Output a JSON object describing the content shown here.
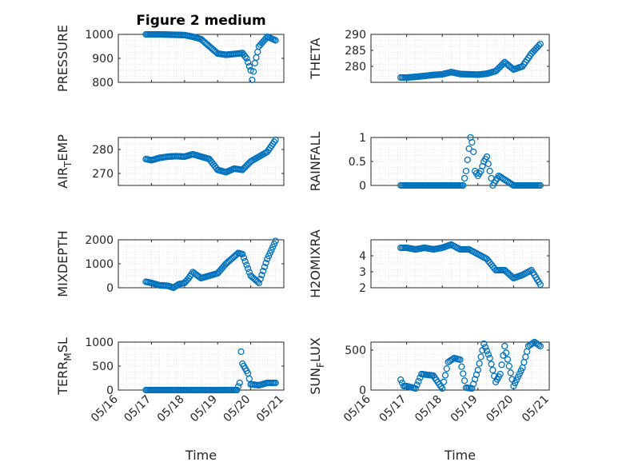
{
  "chart_data": [
    {
      "type": "scatter",
      "title": "Figure 2 medium",
      "ylabel": "PRESSURE",
      "ylim": [
        800,
        1000
      ],
      "yticks": [
        800,
        900,
        1000
      ],
      "xlim": [
        "05/16",
        "05/21"
      ],
      "series": [
        {
          "name": "",
          "x": [
            "05/16 20:00",
            "05/17 00:00",
            "05/17 06:00",
            "05/17 12:00",
            "05/17 18:00",
            "05/18 00:00",
            "05/18 06:00",
            "05/18 12:00",
            "05/18 18:00",
            "05/19 00:00",
            "05/19 06:00",
            "05/19 12:00",
            "05/19 18:00",
            "05/19 21:00",
            "05/20 00:00",
            "05/20 01:00",
            "05/20 03:00",
            "05/20 06:00",
            "05/20 12:00",
            "05/20 18:00"
          ],
          "y": [
            1000,
            1000,
            1000,
            999,
            998,
            997,
            990,
            980,
            950,
            920,
            915,
            918,
            922,
            900,
            850,
            810,
            880,
            950,
            990,
            975
          ]
        }
      ],
      "grid": true,
      "marker": "open-circle",
      "color": "#0072BD"
    },
    {
      "type": "scatter",
      "title": "",
      "ylabel": "THETA",
      "ylim": [
        275,
        290
      ],
      "yticks": [
        280,
        285,
        290
      ],
      "xlim": [
        "05/16",
        "05/21"
      ],
      "series": [
        {
          "name": "",
          "x": [
            "05/16 20:00",
            "05/17 00:00",
            "05/17 06:00",
            "05/17 12:00",
            "05/17 18:00",
            "05/18 00:00",
            "05/18 06:00",
            "05/18 12:00",
            "05/18 18:00",
            "05/19 00:00",
            "05/19 06:00",
            "05/19 12:00",
            "05/19 18:00",
            "05/20 00:00",
            "05/20 06:00",
            "05/20 12:00",
            "05/20 18:00"
          ],
          "y": [
            276.5,
            276.5,
            276.7,
            277,
            277.3,
            277.5,
            278.2,
            277.6,
            277.5,
            277.4,
            277.7,
            278.5,
            281.3,
            279,
            280,
            284,
            287
          ]
        }
      ],
      "grid": true,
      "marker": "open-circle",
      "color": "#0072BD"
    },
    {
      "type": "scatter",
      "title": "",
      "ylabel": "AIR_TEMP",
      "ylabel_display": [
        "AIR",
        "T",
        "EMP"
      ],
      "ylim": [
        265,
        285
      ],
      "yticks": [
        270,
        280
      ],
      "xlim": [
        "05/16",
        "05/21"
      ],
      "series": [
        {
          "name": "",
          "x": [
            "05/16 20:00",
            "05/17 00:00",
            "05/17 06:00",
            "05/17 12:00",
            "05/17 18:00",
            "05/18 00:00",
            "05/18 06:00",
            "05/18 12:00",
            "05/18 18:00",
            "05/19 00:00",
            "05/19 06:00",
            "05/19 12:00",
            "05/19 18:00",
            "05/20 00:00",
            "05/20 06:00",
            "05/20 12:00",
            "05/20 18:00"
          ],
          "y": [
            276,
            275.5,
            276.5,
            277,
            277.2,
            277,
            278,
            277,
            276,
            271.5,
            270.5,
            272,
            271.5,
            275,
            277,
            279,
            284
          ]
        }
      ],
      "grid": true,
      "marker": "open-circle",
      "color": "#0072BD"
    },
    {
      "type": "scatter",
      "title": "",
      "ylabel": "RAINFALL",
      "ylim": [
        0,
        1
      ],
      "yticks": [
        0,
        0.5,
        1
      ],
      "xlim": [
        "05/16",
        "05/21"
      ],
      "series": [
        {
          "name": "",
          "x": [
            "05/16 20:00",
            "05/17 06:00",
            "05/17 18:00",
            "05/18 06:00",
            "05/18 14:00",
            "05/18 16:00",
            "05/18 19:00",
            "05/18 20:00",
            "05/18 21:00",
            "05/18 22:00",
            "05/19 00:00",
            "05/19 02:00",
            "05/19 04:00",
            "05/19 06:00",
            "05/19 10:00",
            "05/19 14:00",
            "05/20 00:00",
            "05/20 12:00",
            "05/20 18:00"
          ],
          "y": [
            0,
            0,
            0,
            0,
            0,
            0.3,
            1,
            0.9,
            0.7,
            0.3,
            0.2,
            0.3,
            0.5,
            0.6,
            0,
            0.2,
            0,
            0,
            0
          ]
        }
      ],
      "grid": true,
      "marker": "open-circle",
      "color": "#0072BD"
    },
    {
      "type": "scatter",
      "title": "",
      "ylabel": "MIXDEPTH",
      "ylim": [
        0,
        2000
      ],
      "yticks": [
        0,
        1000,
        2000
      ],
      "xlim": [
        "05/16",
        "05/21"
      ],
      "series": [
        {
          "name": "",
          "x": [
            "05/16 20:00",
            "05/17 00:00",
            "05/17 06:00",
            "05/17 12:00",
            "05/17 16:00",
            "05/17 20:00",
            "05/18 00:00",
            "05/18 03:00",
            "05/18 06:00",
            "05/18 12:00",
            "05/18 18:00",
            "05/19 00:00",
            "05/19 06:00",
            "05/19 12:00",
            "05/19 15:00",
            "05/19 18:00",
            "05/20 00:00",
            "05/20 06:00",
            "05/20 12:00",
            "05/20 18:00"
          ],
          "y": [
            250,
            200,
            100,
            80,
            0,
            150,
            200,
            400,
            650,
            400,
            500,
            600,
            1000,
            1300,
            1450,
            1400,
            500,
            200,
            1200,
            1950
          ]
        }
      ],
      "grid": true,
      "marker": "open-circle",
      "color": "#0072BD"
    },
    {
      "type": "scatter",
      "title": "",
      "ylabel": "H2OMIXRA",
      "ylim": [
        2,
        5
      ],
      "yticks": [
        2,
        3,
        4
      ],
      "xlim": [
        "05/16",
        "05/21"
      ],
      "series": [
        {
          "name": "",
          "x": [
            "05/16 20:00",
            "05/17 00:00",
            "05/17 06:00",
            "05/17 12:00",
            "05/17 18:00",
            "05/18 00:00",
            "05/18 06:00",
            "05/18 12:00",
            "05/18 18:00",
            "05/19 00:00",
            "05/19 06:00",
            "05/19 12:00",
            "05/19 18:00",
            "05/20 00:00",
            "05/20 06:00",
            "05/20 12:00",
            "05/20 18:00"
          ],
          "y": [
            4.5,
            4.5,
            4.4,
            4.5,
            4.4,
            4.5,
            4.7,
            4.4,
            4.4,
            4.1,
            3.8,
            3.1,
            3.1,
            2.6,
            2.8,
            3.1,
            2.2
          ]
        }
      ],
      "grid": true,
      "marker": "open-circle",
      "color": "#0072BD"
    },
    {
      "type": "scatter",
      "title": "",
      "ylabel": "TERR_MSL",
      "ylabel_display": [
        "TERR",
        "M",
        "SL"
      ],
      "ylim": [
        0,
        1000
      ],
      "yticks": [
        0,
        500,
        1000
      ],
      "xlim": [
        "05/16",
        "05/21"
      ],
      "xticks": [
        "05/16",
        "05/17",
        "05/18",
        "05/19",
        "05/20",
        "05/21"
      ],
      "xlabel": "Time",
      "series": [
        {
          "name": "",
          "x": [
            "05/16 20:00",
            "05/17 06:00",
            "05/17 18:00",
            "05/18 06:00",
            "05/18 18:00",
            "05/19 06:00",
            "05/19 14:00",
            "05/19 16:00",
            "05/19 17:00",
            "05/19 18:00",
            "05/19 20:00",
            "05/19 22:00",
            "05/20 00:00",
            "05/20 06:00",
            "05/20 12:00",
            "05/20 18:00"
          ],
          "y": [
            0,
            0,
            0,
            0,
            0,
            0,
            0,
            150,
            800,
            550,
            450,
            350,
            120,
            100,
            150,
            150
          ]
        }
      ],
      "grid": true,
      "marker": "open-circle",
      "color": "#0072BD"
    },
    {
      "type": "scatter",
      "title": "",
      "ylabel": "SUN_FLUX",
      "ylabel_display": [
        "SUN",
        "F",
        "LUX"
      ],
      "ylim": [
        0,
        600
      ],
      "yticks": [
        0,
        500
      ],
      "xlim": [
        "05/16",
        "05/21"
      ],
      "xticks": [
        "05/16",
        "05/17",
        "05/18",
        "05/19",
        "05/20",
        "05/21"
      ],
      "xlabel": "Time",
      "series": [
        {
          "name": "",
          "x": [
            "05/16 20:00",
            "05/16 22:00",
            "05/17 00:00",
            "05/17 06:00",
            "05/17 10:00",
            "05/17 14:00",
            "05/17 18:00",
            "05/18 00:00",
            "05/18 04:00",
            "05/18 08:00",
            "05/18 12:00",
            "05/18 16:00",
            "05/18 20:00",
            "05/19 00:00",
            "05/19 04:00",
            "05/19 08:00",
            "05/19 12:00",
            "05/19 15:00",
            "05/19 18:00",
            "05/20 00:00",
            "05/20 06:00",
            "05/20 10:00",
            "05/20 14:00",
            "05/20 18:00"
          ],
          "y": [
            130,
            50,
            50,
            20,
            200,
            190,
            180,
            20,
            350,
            400,
            380,
            30,
            20,
            250,
            580,
            400,
            100,
            200,
            550,
            50,
            280,
            550,
            600,
            550
          ]
        }
      ],
      "grid": true,
      "marker": "open-circle",
      "color": "#0072BD"
    }
  ]
}
